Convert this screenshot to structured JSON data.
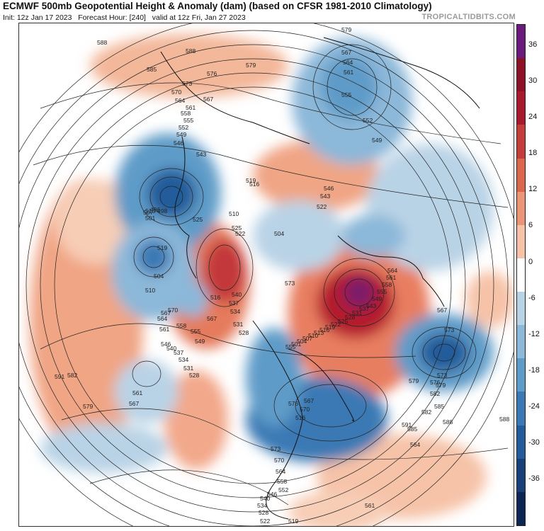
{
  "header": {
    "title": "ECMWF 500mb Geopotential Height & Anomaly (dam) (based on CFSR 1981-2010 Climatology)",
    "init": "Init: 12z Jan 17 2023",
    "forecast_hour": "Forecast Hour: [240]",
    "valid": "valid at 12z Fri, Jan 27 2023",
    "source": "TROPICALTIDBITS.COM"
  },
  "colorbar": {
    "ticks": [
      "36",
      "30",
      "24",
      "18",
      "12",
      "6",
      "0",
      "-6",
      "-12",
      "-18",
      "-24",
      "-30",
      "-36"
    ],
    "colors": [
      "#6a1a7a",
      "#8c1026",
      "#a8182c",
      "#c33b3a",
      "#d9664d",
      "#eb9476",
      "#f6c3a8",
      "#ffffff",
      "#b9d3e6",
      "#8cb8d9",
      "#5e9bc8",
      "#3a79b4",
      "#245b9a",
      "#173f78",
      "#0d2553"
    ]
  },
  "contour_labels": [
    "588",
    "588",
    "579",
    "585",
    "576",
    "573",
    "570",
    "567",
    "564",
    "561",
    "558",
    "555",
    "552",
    "549",
    "546",
    "543",
    "540",
    "537",
    "534",
    "531",
    "528",
    "525",
    "522",
    "519",
    "516",
    "513",
    "510",
    "507",
    "504",
    "501",
    "498",
    "496",
    "579",
    "567",
    "564",
    "561",
    "555",
    "552",
    "549",
    "546",
    "543",
    "522",
    "525",
    "510",
    "519",
    "516",
    "504",
    "573",
    "570",
    "567",
    "564",
    "561",
    "558",
    "555",
    "549",
    "546",
    "540",
    "537",
    "534",
    "531",
    "528",
    "567",
    "564",
    "561",
    "558",
    "555",
    "549",
    "543",
    "537",
    "531",
    "528",
    "525",
    "522",
    "519",
    "516",
    "513",
    "510",
    "507",
    "504",
    "501",
    "555",
    "561",
    "567",
    "573",
    "576",
    "579",
    "582",
    "585",
    "588",
    "591",
    "564",
    "561",
    "567",
    "573",
    "579",
    "582",
    "585",
    "588",
    "591",
    "582",
    "579",
    "576",
    "573",
    "570",
    "564",
    "558",
    "552",
    "546",
    "540",
    "534",
    "528",
    "522",
    "519",
    "516",
    "570",
    "567"
  ]
}
